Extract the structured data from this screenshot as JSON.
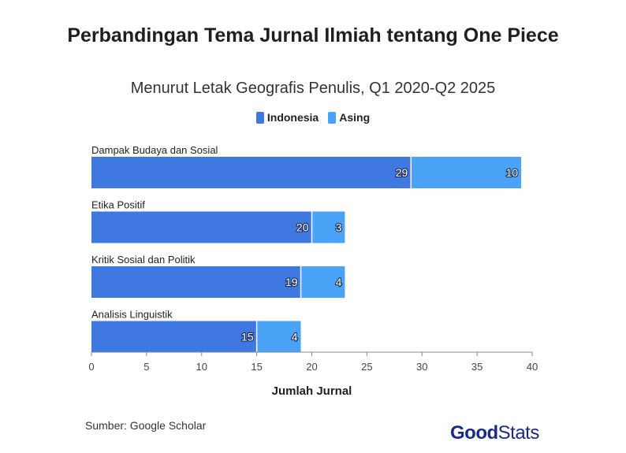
{
  "chart_data": {
    "type": "bar",
    "orientation": "horizontal",
    "stacked": true,
    "title": "Perbandingan Tema Jurnal Ilmiah tentang One Piece",
    "subtitle": "Menurut Letak Geografis Penulis, Q1 2020-Q2 2025",
    "xlabel": "Jumlah Jurnal",
    "categories": [
      "Dampak Budaya dan Sosial",
      "Etika Positif",
      "Kritik Sosial dan Politik",
      "Analisis Linguistik"
    ],
    "series": [
      {
        "name": "Indonesia",
        "values": [
          29,
          20,
          19,
          15
        ],
        "color": "#3f78e0"
      },
      {
        "name": "Asing",
        "values": [
          10,
          3,
          4,
          4
        ],
        "color": "#4aa3f7"
      }
    ],
    "xlim": [
      0,
      40
    ],
    "xticks": [
      0,
      5,
      10,
      15,
      20,
      25,
      30,
      35,
      40
    ],
    "legend_position": "top-center",
    "grid": false
  },
  "source": "Sumber: Google Scholar",
  "logo": {
    "part1": "Good",
    "part2": "Stats"
  }
}
